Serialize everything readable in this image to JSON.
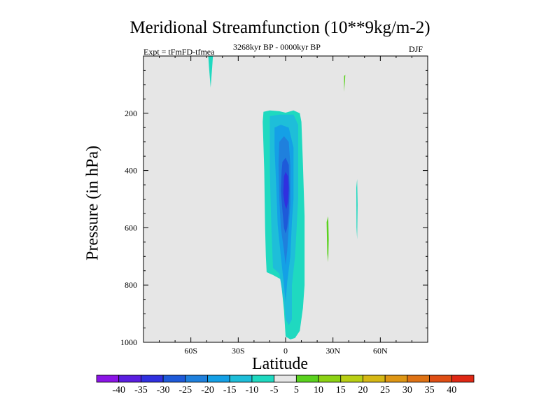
{
  "chart_data": {
    "type": "contour",
    "title": "Meridional Streamfunction (10**9kg/m-2)",
    "subtitle": "3268kyr BP - 0000kyr BP",
    "experiment": "Expt = tFmFD-tfmea",
    "season": "DJF",
    "xlabel": "Latitude",
    "ylabel": "Pressure (in hPa)",
    "xlim": [
      -90,
      90
    ],
    "ylim": [
      1000,
      0
    ],
    "y_reversed": true,
    "x_ticks": [
      {
        "value": -60,
        "label": "60S"
      },
      {
        "value": -30,
        "label": "30S"
      },
      {
        "value": 0,
        "label": "0"
      },
      {
        "value": 30,
        "label": "30N"
      },
      {
        "value": 60,
        "label": "60N"
      }
    ],
    "y_ticks": [
      {
        "value": 200,
        "label": "200"
      },
      {
        "value": 400,
        "label": "400"
      },
      {
        "value": 600,
        "label": "600"
      },
      {
        "value": 800,
        "label": "800"
      },
      {
        "value": 1000,
        "label": "1000"
      }
    ],
    "y_minor_step": 50,
    "x_minor_step": 10,
    "background_color": "#e6e6e6",
    "colorbar": {
      "levels": [
        "-40",
        "-35",
        "-30",
        "-25",
        "-20",
        "-15",
        "-10",
        "-5",
        "5",
        "10",
        "15",
        "20",
        "25",
        "30",
        "35",
        "40"
      ],
      "colors": [
        "#8b14e6",
        "#5a1ee0",
        "#3030df",
        "#1e5ad9",
        "#1f80dd",
        "#14a0e6",
        "#1ebed9",
        "#1fd9c0",
        "#e6e6e6",
        "#5ad21e",
        "#8cd214",
        "#b9cf14",
        "#d6b814",
        "#de9614",
        "#de7214",
        "#df4e14",
        "#df2814"
      ]
    },
    "features": [
      {
        "name": "negative cell near 47S upper",
        "level": "-5",
        "color": "#1fd9c0",
        "points": [
          [
            -49,
            0
          ],
          [
            -46,
            0
          ],
          [
            -46.5,
            40
          ],
          [
            -47.5,
            110
          ],
          [
            -48.5,
            40
          ]
        ]
      },
      {
        "name": "main cell -5",
        "level": "-5",
        "color": "#1fd9c0",
        "points": [
          [
            -14,
            195
          ],
          [
            -10,
            190
          ],
          [
            -4,
            193
          ],
          [
            0,
            198
          ],
          [
            5,
            190
          ],
          [
            9,
            200
          ],
          [
            10,
            230
          ],
          [
            11,
            380
          ],
          [
            12,
            560
          ],
          [
            12,
            720
          ],
          [
            12,
            800
          ],
          [
            11,
            880
          ],
          [
            9,
            960
          ],
          [
            6,
            985
          ],
          [
            3,
            990
          ],
          [
            0,
            980
          ],
          [
            -1,
            890
          ],
          [
            -3,
            780
          ],
          [
            -8,
            765
          ],
          [
            -12,
            755
          ],
          [
            -12.5,
            700
          ],
          [
            -13,
            600
          ],
          [
            -13.5,
            400
          ],
          [
            -14.5,
            230
          ]
        ]
      },
      {
        "name": "main cell -10",
        "level": "-10",
        "color": "#1ebed9",
        "points": [
          [
            -10,
            210
          ],
          [
            -4,
            205
          ],
          [
            0,
            205
          ],
          [
            5,
            205
          ],
          [
            8,
            240
          ],
          [
            8,
            500
          ],
          [
            7,
            600
          ],
          [
            6,
            700
          ],
          [
            4,
            800
          ],
          [
            4,
            920
          ],
          [
            2,
            940
          ],
          [
            0,
            920
          ],
          [
            -1,
            860
          ],
          [
            -4,
            760
          ],
          [
            -8,
            740
          ],
          [
            -9,
            600
          ],
          [
            -10,
            400
          ]
        ]
      },
      {
        "name": "main cell -15",
        "level": "-15",
        "color": "#14a0e6",
        "points": [
          [
            -7,
            250
          ],
          [
            -3,
            240
          ],
          [
            2,
            250
          ],
          [
            5,
            320
          ],
          [
            5,
            500
          ],
          [
            4,
            580
          ],
          [
            3,
            700
          ],
          [
            1,
            790
          ],
          [
            0,
            860
          ],
          [
            -1,
            800
          ],
          [
            -3,
            700
          ],
          [
            -5,
            590
          ],
          [
            -6,
            450
          ],
          [
            -7,
            320
          ]
        ]
      },
      {
        "name": "main cell -20",
        "level": "-20",
        "color": "#1f80dd",
        "points": [
          [
            -4,
            300
          ],
          [
            -1,
            280
          ],
          [
            2,
            300
          ],
          [
            3,
            380
          ],
          [
            3,
            520
          ],
          [
            2,
            600
          ],
          [
            1,
            680
          ],
          [
            0,
            730
          ],
          [
            -1,
            680
          ],
          [
            -3,
            600
          ],
          [
            -4,
            500
          ],
          [
            -4.5,
            380
          ]
        ]
      },
      {
        "name": "main cell -25",
        "level": "-25",
        "color": "#1e5ad9",
        "points": [
          [
            -2,
            370
          ],
          [
            0,
            355
          ],
          [
            2,
            380
          ],
          [
            2.5,
            470
          ],
          [
            2,
            550
          ],
          [
            1,
            600
          ],
          [
            0,
            620
          ],
          [
            -1,
            600
          ],
          [
            -2,
            540
          ],
          [
            -3,
            470
          ],
          [
            -2.5,
            400
          ]
        ]
      },
      {
        "name": "main cell -30",
        "level": "-30",
        "color": "#3030df",
        "points": [
          [
            -1,
            420
          ],
          [
            0,
            405
          ],
          [
            1.5,
            420
          ],
          [
            2,
            460
          ],
          [
            1.5,
            510
          ],
          [
            0.5,
            535
          ],
          [
            -0.5,
            520
          ],
          [
            -1.5,
            480
          ]
        ]
      },
      {
        "name": "positive cell 37N upper",
        "level": "5",
        "color": "#5ad21e",
        "points": [
          [
            37,
            70
          ],
          [
            37.8,
            65
          ],
          [
            37.6,
            90
          ],
          [
            37,
            125
          ]
        ]
      },
      {
        "name": "positive cell 27N mid",
        "level": "5",
        "color": "#5ad21e",
        "points": [
          [
            26,
            580
          ],
          [
            27,
            560
          ],
          [
            27.3,
            640
          ],
          [
            27,
            720
          ],
          [
            26.4,
            690
          ]
        ]
      },
      {
        "name": "negative cell 45N mid",
        "level": "-5",
        "color": "#1fd9c0",
        "points": [
          [
            44.8,
            460
          ],
          [
            45.3,
            430
          ],
          [
            45.6,
            520
          ],
          [
            45.3,
            640
          ],
          [
            44.9,
            600
          ]
        ]
      }
    ]
  }
}
